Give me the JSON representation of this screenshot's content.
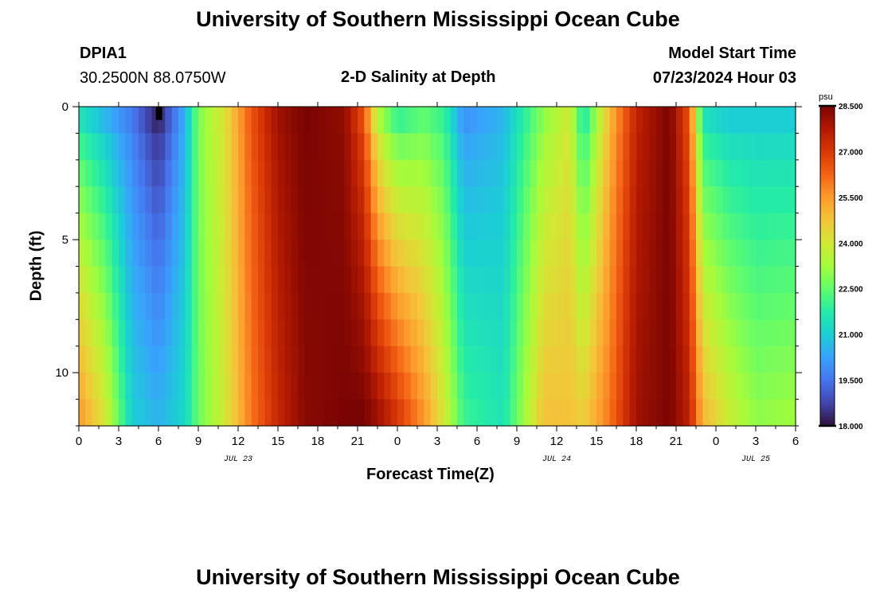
{
  "header": {
    "title": "University of Southern Mississippi Ocean Cube",
    "station": "DPIA1",
    "coords": "30.2500N  88.0750W",
    "plot_title": "2-D Salinity at Depth",
    "model_label": "Model Start Time",
    "model_time": "07/23/2024 Hour 03"
  },
  "footer": {
    "title": "University of Southern Mississippi Ocean Cube"
  },
  "chart_data": {
    "type": "heatmap",
    "title": "2-D Salinity at Depth",
    "xlabel": "Forecast Time(Z)",
    "ylabel": "Depth (ft)",
    "x_tick_labels": [
      "0",
      "3",
      "6",
      "9",
      "12",
      "15",
      "18",
      "21",
      "0",
      "3",
      "6",
      "9",
      "12",
      "15",
      "18",
      "21",
      "0",
      "3",
      "6"
    ],
    "x_tick_hours": [
      0,
      3,
      6,
      9,
      12,
      15,
      18,
      21,
      24,
      27,
      30,
      33,
      36,
      39,
      42,
      45,
      48,
      51,
      54
    ],
    "date_labels": [
      {
        "text": "JUL 23",
        "hour": 12
      },
      {
        "text": "JUL 24",
        "hour": 36
      },
      {
        "text": "JUL 25",
        "hour": 51
      }
    ],
    "xlim_hours": [
      0,
      54
    ],
    "y_tick_labels": [
      "0",
      "5",
      "10"
    ],
    "y_tick_values": [
      0,
      5,
      10
    ],
    "ylim_ft": [
      0,
      12
    ],
    "depth_levels_ft": [
      0.5,
      1.5,
      2.5,
      3.5,
      4.5,
      5.5,
      6.5,
      7.5,
      8.5,
      9.5,
      10.5,
      11.5
    ],
    "colorbar": {
      "unit": "psu",
      "labels": [
        "28.500",
        "27.000",
        "25.500",
        "24.000",
        "22.500",
        "21.000",
        "19.500",
        "18.000"
      ],
      "min": 18.0,
      "max": 28.5,
      "colors": [
        "#30123b",
        "#4145ab",
        "#4675ed",
        "#39a2fc",
        "#1bcfd4",
        "#24eca6",
        "#61fc6c",
        "#a4fc3b",
        "#d1e834",
        "#f3c63a",
        "#fe9b2d",
        "#f36315",
        "#d93806",
        "#b11901",
        "#7a0403"
      ]
    },
    "salinity_surface_profile": [
      {
        "hour": 0,
        "top": 21.6,
        "bottom": 25.5
      },
      {
        "hour": 2,
        "top": 20.6,
        "bottom": 24.0
      },
      {
        "hour": 4,
        "top": 19.6,
        "bottom": 21.0
      },
      {
        "hour": 6,
        "top": 18.2,
        "bottom": 20.5
      },
      {
        "hour": 8,
        "top": 20.5,
        "bottom": 21.2
      },
      {
        "hour": 9,
        "top": 22.8,
        "bottom": 22.6
      },
      {
        "hour": 11,
        "top": 24.2,
        "bottom": 24.0
      },
      {
        "hour": 13,
        "top": 26.5,
        "bottom": 26.0
      },
      {
        "hour": 15,
        "top": 28.0,
        "bottom": 27.4
      },
      {
        "hour": 17,
        "top": 28.5,
        "bottom": 28.3
      },
      {
        "hour": 20,
        "top": 28.2,
        "bottom": 28.5
      },
      {
        "hour": 21.5,
        "top": 26.5,
        "bottom": 28.5
      },
      {
        "hour": 22.5,
        "top": 23.5,
        "bottom": 28.0
      },
      {
        "hour": 24,
        "top": 22.0,
        "bottom": 27.0
      },
      {
        "hour": 26,
        "top": 22.5,
        "bottom": 25.5
      },
      {
        "hour": 27.5,
        "top": 22.0,
        "bottom": 24.0
      },
      {
        "hour": 29,
        "top": 20.0,
        "bottom": 22.0
      },
      {
        "hour": 32,
        "top": 20.6,
        "bottom": 21.5
      },
      {
        "hour": 35,
        "top": 23.0,
        "bottom": 24.8
      },
      {
        "hour": 37,
        "top": 24.0,
        "bottom": 24.8
      },
      {
        "hour": 38,
        "top": 21.5,
        "bottom": 24.5
      },
      {
        "hour": 40,
        "top": 25.0,
        "bottom": 26.0
      },
      {
        "hour": 42,
        "top": 27.5,
        "bottom": 28.0
      },
      {
        "hour": 44.5,
        "top": 28.5,
        "bottom": 28.5
      },
      {
        "hour": 46,
        "top": 26.5,
        "bottom": 27.5
      },
      {
        "hour": 47,
        "top": 21.5,
        "bottom": 25.0
      },
      {
        "hour": 49,
        "top": 21.0,
        "bottom": 23.8
      },
      {
        "hour": 51,
        "top": 21.0,
        "bottom": 23.0
      },
      {
        "hour": 54,
        "top": 21.0,
        "bottom": 23.2
      }
    ]
  }
}
